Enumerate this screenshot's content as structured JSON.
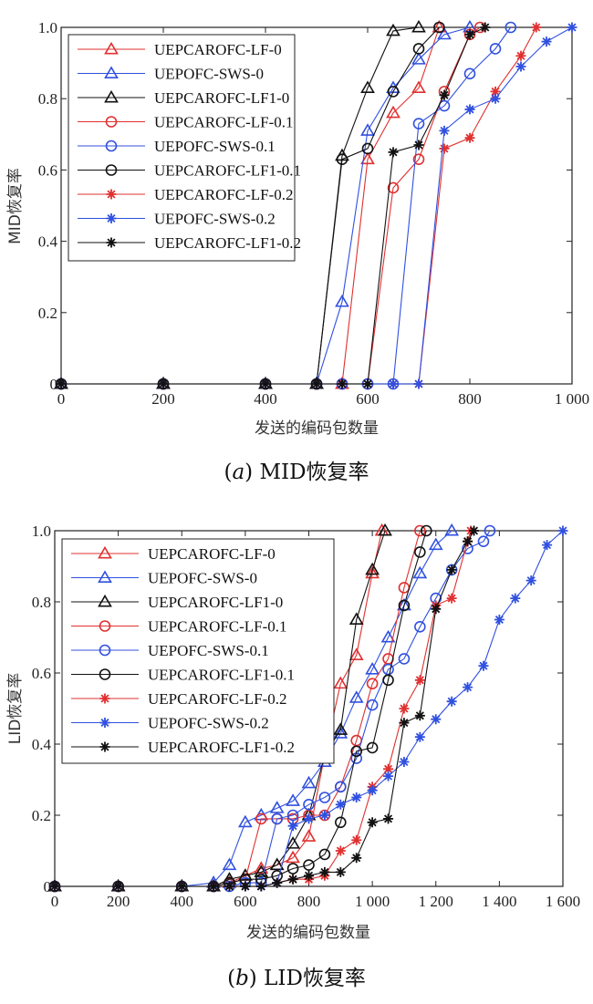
{
  "chart_data": [
    {
      "type": "line",
      "caption_letter": "a",
      "caption_text": "MID恢复率",
      "xlabel": "发送的编码包数量",
      "ylabel": "MID恢复率",
      "xlim": [
        0,
        1000
      ],
      "ylim": [
        0,
        1
      ],
      "xticks": [
        0,
        200,
        400,
        600,
        800,
        1000
      ],
      "xtick_labels": [
        "0",
        "200",
        "400",
        "600",
        "800",
        "1 000"
      ],
      "yticks": [
        0,
        0.2,
        0.4,
        0.6,
        0.8,
        1.0
      ],
      "ytick_labels": [
        "0",
        "0.2",
        "0.4",
        "0.6",
        "0.8",
        "1.0"
      ],
      "grid": false,
      "legend_position": "top-left",
      "series": [
        {
          "name": "UEPCAROFC-LF-0",
          "color": "#e03030",
          "marker": "triangle",
          "x": [
            0,
            200,
            400,
            500,
            550,
            600,
            650,
            700,
            740
          ],
          "y": [
            0,
            0,
            0,
            0,
            0,
            0.63,
            0.76,
            0.83,
            1.0
          ]
        },
        {
          "name": "UEPOFC-SWS-0",
          "color": "#3050e0",
          "marker": "triangle",
          "x": [
            0,
            200,
            400,
            500,
            550,
            600,
            650,
            700,
            750,
            800
          ],
          "y": [
            0,
            0,
            0,
            0,
            0.23,
            0.71,
            0.83,
            0.91,
            0.98,
            1.0
          ]
        },
        {
          "name": "UEPCAROFC-LF1-0",
          "color": "#111111",
          "marker": "triangle",
          "x": [
            0,
            200,
            400,
            500,
            550,
            600,
            650,
            700
          ],
          "y": [
            0,
            0,
            0,
            0,
            0.64,
            0.83,
            0.99,
            1.0
          ]
        },
        {
          "name": "UEPCAROFC-LF-0.1",
          "color": "#e03030",
          "marker": "circle",
          "x": [
            0,
            200,
            400,
            500,
            550,
            600,
            650,
            700,
            750,
            800,
            820
          ],
          "y": [
            0,
            0,
            0,
            0,
            0,
            0,
            0.55,
            0.63,
            0.82,
            0.98,
            1.0
          ]
        },
        {
          "name": "UEPOFC-SWS-0.1",
          "color": "#3050e0",
          "marker": "circle",
          "x": [
            0,
            200,
            400,
            500,
            550,
            600,
            650,
            700,
            750,
            800,
            850,
            880
          ],
          "y": [
            0,
            0,
            0,
            0,
            0,
            0,
            0,
            0.73,
            0.78,
            0.87,
            0.94,
            1.0
          ]
        },
        {
          "name": "UEPCAROFC-LF1-0.1",
          "color": "#111111",
          "marker": "circle",
          "x": [
            0,
            200,
            400,
            500,
            550,
            600,
            650,
            700,
            740
          ],
          "y": [
            0,
            0,
            0,
            0,
            0.63,
            0.66,
            0.82,
            0.94,
            1.0
          ]
        },
        {
          "name": "UEPCAROFC-LF-0.2",
          "color": "#e03030",
          "marker": "star",
          "x": [
            0,
            200,
            400,
            500,
            550,
            600,
            650,
            700,
            750,
            800,
            850,
            900,
            930
          ],
          "y": [
            0,
            0,
            0,
            0,
            0,
            0,
            0,
            0,
            0.66,
            0.69,
            0.82,
            0.92,
            1.0
          ]
        },
        {
          "name": "UEPOFC-SWS-0.2",
          "color": "#3050e0",
          "marker": "star",
          "x": [
            0,
            200,
            400,
            500,
            550,
            600,
            650,
            700,
            750,
            800,
            850,
            900,
            950,
            1000
          ],
          "y": [
            0,
            0,
            0,
            0,
            0,
            0,
            0,
            0,
            0.71,
            0.77,
            0.8,
            0.89,
            0.96,
            1.0
          ]
        },
        {
          "name": "UEPCAROFC-LF1-0.2",
          "color": "#111111",
          "marker": "star",
          "x": [
            0,
            200,
            400,
            500,
            550,
            600,
            650,
            700,
            750,
            800,
            830
          ],
          "y": [
            0,
            0,
            0,
            0,
            0,
            0,
            0.65,
            0.67,
            0.81,
            0.98,
            1.0
          ]
        }
      ]
    },
    {
      "type": "line",
      "caption_letter": "b",
      "caption_text": "LID恢复率",
      "xlabel": "发送的编码包数量",
      "ylabel": "LID恢复率",
      "xlim": [
        0,
        1600
      ],
      "ylim": [
        0,
        1
      ],
      "xticks": [
        0,
        200,
        400,
        600,
        800,
        1000,
        1200,
        1400,
        1600
      ],
      "xtick_labels": [
        "0",
        "200",
        "400",
        "600",
        "800",
        "1 000",
        "1 200",
        "1 400",
        "1 600"
      ],
      "yticks": [
        0,
        0.2,
        0.4,
        0.6,
        0.8,
        1.0
      ],
      "ytick_labels": [
        "0",
        "0.2",
        "0.4",
        "0.6",
        "0.8",
        "1.0"
      ],
      "grid": false,
      "legend_position": "top-left",
      "series": [
        {
          "name": "UEPCAROFC-LF-0",
          "color": "#e03030",
          "marker": "triangle",
          "x": [
            0,
            200,
            400,
            500,
            550,
            600,
            650,
            700,
            750,
            800,
            850,
            900,
            950,
            1000,
            1030
          ],
          "y": [
            0,
            0,
            0,
            0,
            0.01,
            0.03,
            0.05,
            0.06,
            0.08,
            0.14,
            0.37,
            0.57,
            0.65,
            0.88,
            1.0
          ]
        },
        {
          "name": "UEPOFC-SWS-0",
          "color": "#3050e0",
          "marker": "triangle",
          "x": [
            0,
            200,
            400,
            500,
            550,
            600,
            650,
            700,
            750,
            800,
            850,
            900,
            950,
            1000,
            1050,
            1100,
            1150,
            1200,
            1250
          ],
          "y": [
            0,
            0,
            0,
            0.01,
            0.06,
            0.18,
            0.2,
            0.22,
            0.24,
            0.29,
            0.35,
            0.43,
            0.53,
            0.61,
            0.7,
            0.79,
            0.88,
            0.96,
            1.0
          ]
        },
        {
          "name": "UEPCAROFC-LF1-0",
          "color": "#111111",
          "marker": "triangle",
          "x": [
            0,
            200,
            400,
            500,
            550,
            600,
            650,
            700,
            750,
            800,
            850,
            900,
            950,
            1000,
            1040
          ],
          "y": [
            0,
            0,
            0,
            0,
            0.02,
            0.03,
            0.04,
            0.06,
            0.12,
            0.2,
            0.37,
            0.44,
            0.75,
            0.89,
            1.0
          ]
        },
        {
          "name": "UEPCAROFC-LF-0.1",
          "color": "#e03030",
          "marker": "circle",
          "x": [
            0,
            200,
            400,
            500,
            550,
            600,
            650,
            700,
            750,
            800,
            850,
            900,
            950,
            1000,
            1050,
            1100,
            1150
          ],
          "y": [
            0,
            0,
            0,
            0,
            0.01,
            0.02,
            0.19,
            0.19,
            0.19,
            0.2,
            0.2,
            0.28,
            0.41,
            0.57,
            0.64,
            0.84,
            1.0
          ]
        },
        {
          "name": "UEPOFC-SWS-0.1",
          "color": "#3050e0",
          "marker": "circle",
          "x": [
            0,
            200,
            400,
            500,
            550,
            600,
            650,
            700,
            750,
            800,
            850,
            900,
            950,
            1000,
            1050,
            1100,
            1150,
            1200,
            1250,
            1300,
            1350,
            1370
          ],
          "y": [
            0,
            0,
            0,
            0,
            0,
            0.01,
            0.01,
            0.19,
            0.2,
            0.23,
            0.25,
            0.28,
            0.36,
            0.51,
            0.61,
            0.64,
            0.73,
            0.81,
            0.89,
            0.95,
            0.97,
            1.0
          ]
        },
        {
          "name": "UEPCAROFC-LF1-0.1",
          "color": "#111111",
          "marker": "circle",
          "x": [
            0,
            200,
            400,
            500,
            550,
            600,
            650,
            700,
            750,
            800,
            850,
            900,
            950,
            1000,
            1050,
            1100,
            1150,
            1170
          ],
          "y": [
            0,
            0,
            0,
            0,
            0.01,
            0.02,
            0.02,
            0.03,
            0.05,
            0.06,
            0.09,
            0.18,
            0.38,
            0.39,
            0.58,
            0.79,
            0.94,
            1.0
          ]
        },
        {
          "name": "UEPCAROFC-LF-0.2",
          "color": "#e03030",
          "marker": "star",
          "x": [
            0,
            200,
            400,
            500,
            550,
            600,
            650,
            700,
            750,
            800,
            850,
            900,
            950,
            1000,
            1050,
            1100,
            1150,
            1200,
            1250,
            1300,
            1310
          ],
          "y": [
            0,
            0,
            0,
            0,
            0,
            0,
            0,
            0.01,
            0.02,
            0.02,
            0.03,
            0.1,
            0.13,
            0.28,
            0.33,
            0.5,
            0.58,
            0.79,
            0.81,
            0.97,
            1.0
          ]
        },
        {
          "name": "UEPOFC-SWS-0.2",
          "color": "#3050e0",
          "marker": "star",
          "x": [
            0,
            200,
            400,
            500,
            550,
            600,
            650,
            700,
            750,
            800,
            850,
            900,
            950,
            1000,
            1050,
            1100,
            1150,
            1200,
            1250,
            1300,
            1350,
            1400,
            1450,
            1500,
            1550,
            1600
          ],
          "y": [
            0,
            0,
            0,
            0,
            0,
            0,
            0,
            0.01,
            0.17,
            0.19,
            0.2,
            0.23,
            0.25,
            0.27,
            0.31,
            0.35,
            0.42,
            0.47,
            0.52,
            0.56,
            0.62,
            0.75,
            0.81,
            0.86,
            0.96,
            1.0
          ]
        },
        {
          "name": "UEPCAROFC-LF1-0.2",
          "color": "#111111",
          "marker": "star",
          "x": [
            0,
            200,
            400,
            500,
            550,
            600,
            650,
            700,
            750,
            800,
            850,
            900,
            950,
            1000,
            1050,
            1100,
            1150,
            1200,
            1250,
            1300,
            1320
          ],
          "y": [
            0,
            0,
            0,
            0,
            0,
            0,
            0,
            0.01,
            0.02,
            0.03,
            0.04,
            0.04,
            0.08,
            0.18,
            0.19,
            0.46,
            0.48,
            0.78,
            0.89,
            0.97,
            1.0
          ]
        }
      ]
    }
  ]
}
